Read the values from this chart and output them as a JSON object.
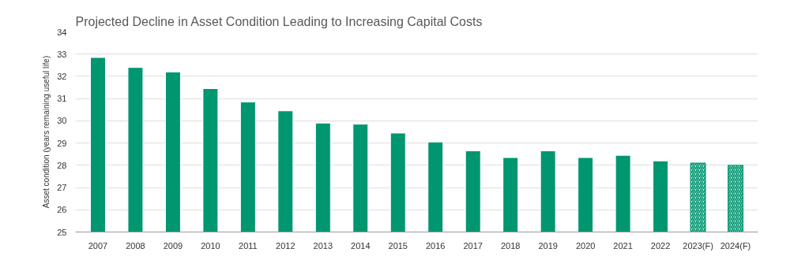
{
  "chart_data": {
    "type": "bar",
    "title": "Projected Decline in Asset Condition Leading to Increasing Capital Costs",
    "ylabel": "Asset condition (years remaining useful life)",
    "categories": [
      "2007",
      "2008",
      "2009",
      "2010",
      "2011",
      "2012",
      "2013",
      "2014",
      "2015",
      "2016",
      "2017",
      "2018",
      "2019",
      "2020",
      "2021",
      "2022",
      "2023(F)",
      "2024(F)"
    ],
    "stacked": true,
    "series": [
      {
        "color": "#009670",
        "values": [
          32.85,
          32.4,
          32.2,
          31.45,
          30.85,
          30.45,
          29.9,
          29.85,
          29.45,
          29.05,
          28.65,
          28.35,
          28.65,
          28.35,
          28.45,
          28.2,
          null,
          null
        ]
      },
      {
        "color": "#009670",
        "values": [
          null,
          null,
          null,
          null,
          null,
          null,
          null,
          null,
          null,
          null,
          null,
          null,
          null,
          null,
          null,
          null,
          28.1,
          28.0
        ]
      }
    ],
    "ylim": [
      25,
      34
    ],
    "yticks": [
      25,
      26,
      27,
      28,
      29,
      30,
      31,
      32,
      33,
      34
    ],
    "grid": "y"
  }
}
